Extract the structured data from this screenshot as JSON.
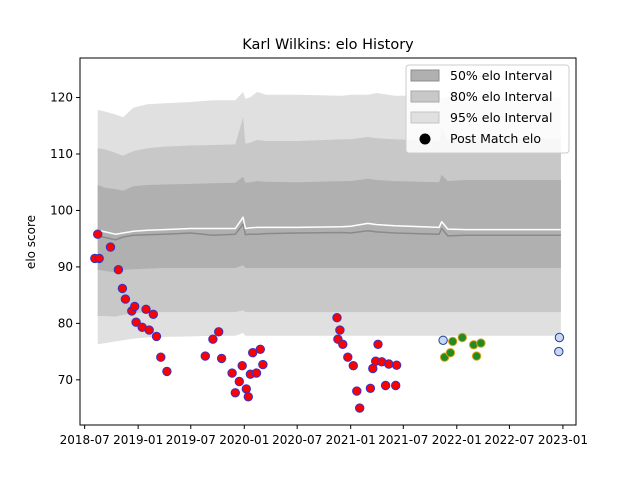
{
  "chart_data": {
    "type": "scatter",
    "title": "Karl Wilkins: elo History",
    "xlabel": "",
    "ylabel": "elo score",
    "xlim": [
      "2018-06-15",
      "2023-02-15"
    ],
    "ylim": [
      62,
      127
    ],
    "x_ticks": [
      "2018-07",
      "2019-01",
      "2019-07",
      "2020-01",
      "2020-07",
      "2021-01",
      "2021-07",
      "2022-01",
      "2022-07",
      "2023-01"
    ],
    "y_ticks": [
      70,
      80,
      90,
      100,
      110,
      120
    ],
    "grid": false,
    "legend_position": "top-right",
    "legend": [
      "50% elo Interval",
      "80% elo Interval",
      "95% elo Interval",
      "Post Match elo"
    ],
    "colors": {
      "band_50": "#b0b0b0",
      "band_80": "#c8c8c8",
      "band_95": "#e0e0e0",
      "median_line": "#8a8a8a",
      "mean_line": "#ffffff",
      "point_fill_1": "#ff0000",
      "point_edge_1": "#3333cc",
      "point_fill_2": "#228b22",
      "point_edge_2": "#daa520",
      "point_fill_3": "#c9d8f0",
      "point_edge_3": "#1f3f99"
    },
    "bands": {
      "x": [
        "2018-08-15",
        "2018-09-10",
        "2018-10-15",
        "2018-11-10",
        "2018-12-15",
        "2019-02-01",
        "2019-04-01",
        "2019-07-01",
        "2019-09-15",
        "2019-12-01",
        "2019-12-28",
        "2020-01-05",
        "2020-01-20",
        "2020-02-15",
        "2020-03-15",
        "2020-07-01",
        "2020-12-01",
        "2021-01-01",
        "2021-03-01",
        "2021-04-01",
        "2021-06-01",
        "2021-11-01",
        "2021-11-10",
        "2021-12-01",
        "2022-02-01",
        "2022-08-01",
        "2022-12-25"
      ],
      "p95_upper": [
        117.8,
        117.5,
        117.0,
        116.5,
        118.2,
        118.8,
        119.0,
        119.2,
        119.5,
        119.5,
        121.0,
        119.8,
        120.0,
        121.0,
        120.5,
        120.5,
        120.3,
        120.5,
        120.5,
        120.8,
        120.3,
        120.3,
        119.8,
        120.2,
        120.0,
        120.0,
        120.0
      ],
      "p80_upper": [
        111.0,
        110.8,
        110.2,
        109.7,
        110.5,
        111.0,
        111.3,
        111.5,
        111.6,
        111.7,
        116.5,
        111.8,
        112.0,
        112.5,
        112.3,
        112.3,
        112.6,
        112.6,
        113.0,
        112.8,
        112.6,
        112.3,
        115.0,
        112.5,
        112.7,
        112.7,
        112.7
      ],
      "p50_upper": [
        104.5,
        104.0,
        103.8,
        103.5,
        104.3,
        104.5,
        104.6,
        104.7,
        104.8,
        104.9,
        106.0,
        104.9,
        105.0,
        105.2,
        105.1,
        105.0,
        105.2,
        105.2,
        105.6,
        105.4,
        105.2,
        105.0,
        106.3,
        105.2,
        105.4,
        105.4,
        105.4
      ],
      "mean": [
        96.5,
        96.2,
        95.8,
        96.0,
        96.3,
        96.5,
        96.6,
        96.8,
        96.8,
        96.8,
        98.8,
        96.8,
        96.9,
        97.0,
        97.0,
        97.0,
        97.1,
        97.2,
        97.7,
        97.5,
        97.3,
        97.0,
        98.0,
        96.7,
        96.6,
        96.6,
        96.6
      ],
      "median": [
        95.5,
        95.2,
        94.8,
        95.3,
        95.6,
        95.7,
        95.8,
        96.0,
        95.6,
        95.8,
        97.6,
        95.7,
        95.8,
        95.8,
        95.9,
        96.0,
        96.1,
        96.0,
        96.4,
        96.2,
        96.0,
        95.8,
        96.8,
        95.5,
        95.6,
        95.6,
        95.6
      ],
      "p50_lower": [
        89.5,
        89.3,
        89.0,
        89.5,
        89.6,
        89.7,
        89.8,
        89.8,
        89.8,
        89.8,
        90.3,
        89.8,
        89.8,
        89.8,
        89.8,
        89.8,
        89.8,
        89.8,
        89.8,
        89.8,
        89.8,
        89.8,
        89.8,
        89.8,
        89.8,
        89.8,
        89.8
      ],
      "p80_lower": [
        81.3,
        81.3,
        81.2,
        81.5,
        81.8,
        82.0,
        82.0,
        82.0,
        82.0,
        82.0,
        82.3,
        82.0,
        82.0,
        82.0,
        82.0,
        82.0,
        82.0,
        82.0,
        82.0,
        82.0,
        82.0,
        82.0,
        82.0,
        82.0,
        82.0,
        82.0,
        82.0
      ],
      "p95_lower": [
        76.3,
        76.5,
        76.8,
        77.0,
        77.3,
        77.5,
        77.6,
        77.7,
        77.8,
        77.8,
        78.3,
        77.8,
        77.8,
        77.8,
        77.8,
        77.8,
        77.8,
        77.8,
        77.8,
        77.8,
        77.8,
        77.8,
        77.8,
        77.8,
        77.8,
        77.8,
        77.8
      ]
    },
    "series": [
      {
        "style": "red",
        "points": [
          [
            "2018-08-05",
            91.5
          ],
          [
            "2018-08-15",
            95.8
          ],
          [
            "2018-08-20",
            91.5
          ],
          [
            "2018-09-28",
            93.5
          ],
          [
            "2018-10-25",
            89.5
          ],
          [
            "2018-11-08",
            86.2
          ],
          [
            "2018-11-18",
            84.3
          ],
          [
            "2018-12-10",
            82.2
          ],
          [
            "2018-12-20",
            83.0
          ],
          [
            "2018-12-25",
            80.2
          ],
          [
            "2019-01-15",
            79.3
          ],
          [
            "2019-01-28",
            82.5
          ],
          [
            "2019-02-08",
            78.8
          ],
          [
            "2019-02-22",
            81.6
          ],
          [
            "2019-03-05",
            77.7
          ],
          [
            "2019-03-20",
            74.0
          ],
          [
            "2019-04-10",
            71.5
          ],
          [
            "2019-08-20",
            74.2
          ],
          [
            "2019-09-15",
            77.2
          ],
          [
            "2019-10-05",
            78.5
          ],
          [
            "2019-10-15",
            73.8
          ],
          [
            "2019-11-20",
            71.2
          ],
          [
            "2019-12-01",
            67.7
          ],
          [
            "2019-12-15",
            69.7
          ],
          [
            "2019-12-25",
            72.5
          ],
          [
            "2020-01-08",
            68.4
          ],
          [
            "2020-01-15",
            67.0
          ],
          [
            "2020-01-22",
            71.0
          ],
          [
            "2020-01-30",
            74.8
          ],
          [
            "2020-02-12",
            71.2
          ],
          [
            "2020-02-25",
            75.4
          ],
          [
            "2020-03-05",
            72.7
          ],
          [
            "2020-11-15",
            81.0
          ],
          [
            "2020-11-18",
            77.2
          ],
          [
            "2020-11-25",
            78.8
          ],
          [
            "2020-12-05",
            76.3
          ],
          [
            "2020-12-22",
            74.0
          ],
          [
            "2021-01-10",
            72.5
          ],
          [
            "2021-01-22",
            68.0
          ],
          [
            "2021-02-01",
            65.0
          ],
          [
            "2021-03-10",
            68.5
          ],
          [
            "2021-03-18",
            72.0
          ],
          [
            "2021-03-28",
            73.3
          ],
          [
            "2021-04-05",
            76.3
          ],
          [
            "2021-04-18",
            73.2
          ],
          [
            "2021-05-01",
            69.0
          ],
          [
            "2021-05-12",
            72.8
          ],
          [
            "2021-06-05",
            69.0
          ],
          [
            "2021-06-08",
            72.6
          ]
        ]
      },
      {
        "style": "green",
        "points": [
          [
            "2021-11-20",
            74.0
          ],
          [
            "2021-12-10",
            74.8
          ],
          [
            "2021-12-18",
            76.8
          ],
          [
            "2022-01-20",
            77.5
          ],
          [
            "2022-02-28",
            76.2
          ],
          [
            "2022-03-10",
            74.2
          ],
          [
            "2022-03-25",
            76.5
          ]
        ]
      },
      {
        "style": "blue",
        "points": [
          [
            "2021-11-15",
            77.0
          ],
          [
            "2022-12-20",
            77.5
          ],
          [
            "2022-12-18",
            75.0
          ]
        ]
      }
    ]
  }
}
